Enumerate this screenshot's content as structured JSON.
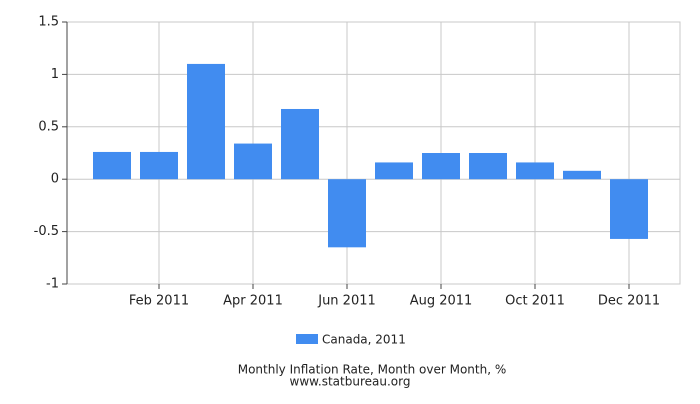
{
  "chart_data": {
    "type": "bar",
    "title": "Monthly Inflation Rate, Month over Month, %",
    "source": "www.statbureau.org",
    "categories": [
      null,
      "Feb 2011",
      null,
      "Apr 2011",
      null,
      "Jun 2011",
      null,
      "Aug 2011",
      null,
      "Oct 2011",
      null,
      "Dec 2011"
    ],
    "series": [
      {
        "name": "Canada, 2011",
        "color": "#418cf0",
        "values": [
          0.26,
          0.26,
          1.1,
          0.34,
          0.67,
          -0.65,
          0.16,
          0.25,
          0.25,
          0.16,
          0.08,
          -0.57
        ]
      }
    ],
    "ylim": [
      -1,
      1.5
    ],
    "yticks": [
      -1,
      -0.5,
      0,
      0.5,
      1,
      1.5
    ],
    "grid": true
  }
}
